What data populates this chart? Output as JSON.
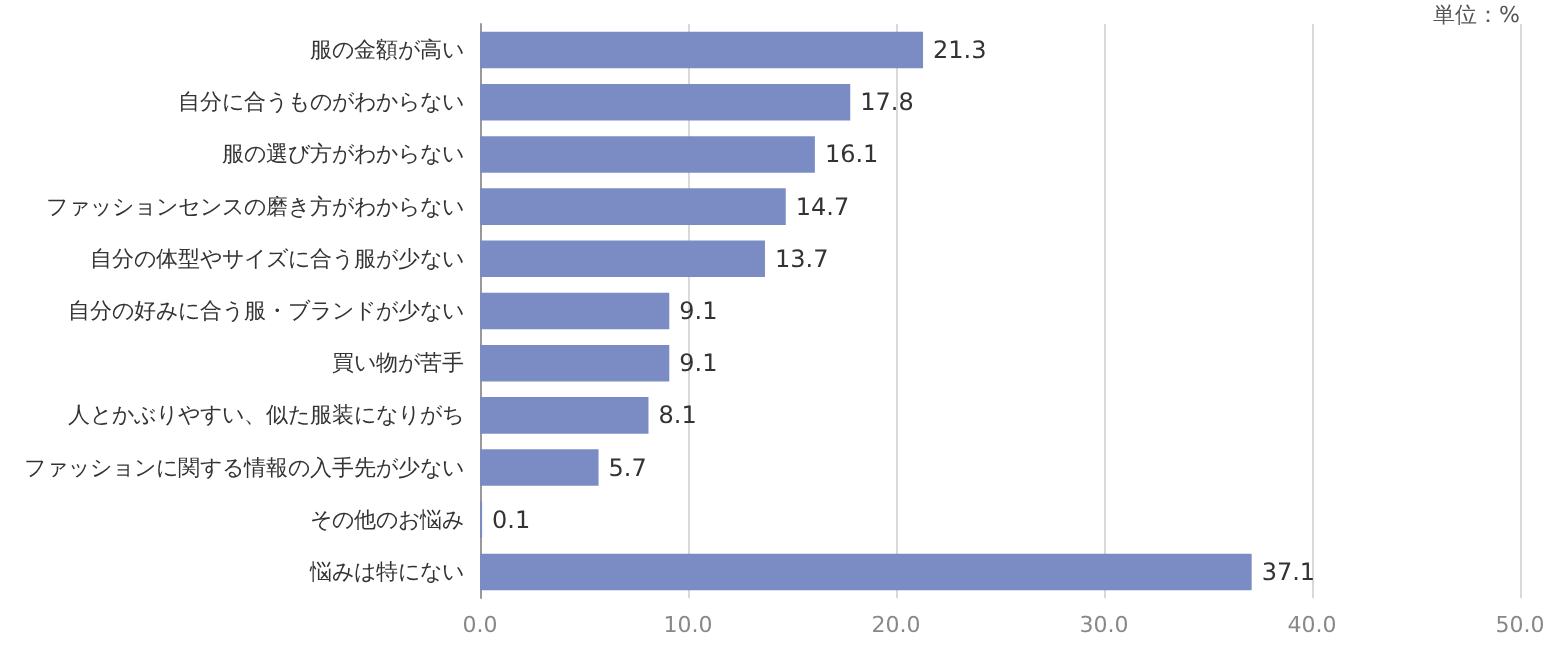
{
  "chart_data": {
    "type": "bar",
    "orientation": "horizontal",
    "categories": [
      "服の金額が高い",
      "自分に合うものがわからない",
      "服の選び方がわからない",
      "ファッションセンスの磨き方がわからない",
      "自分の体型やサイズに合う服が少ない",
      "自分の好みに合う服・ブランドが少ない",
      "買い物が苦手",
      "人とかぶりやすい、似た服装になりがち",
      "ファッションに関する情報の入手先が少ない",
      "その他のお悩み",
      "悩みは特にない"
    ],
    "values": [
      21.3,
      17.8,
      16.1,
      14.7,
      13.7,
      9.1,
      9.1,
      8.1,
      5.7,
      0.1,
      37.1
    ],
    "color": "#7b8cc4",
    "xlim": [
      0,
      50
    ],
    "xticks": [
      {
        "value": 0,
        "label": "0.0"
      },
      {
        "value": 10,
        "label": "10.0"
      },
      {
        "value": 20,
        "label": "20.0"
      },
      {
        "value": 30,
        "label": "30.0"
      },
      {
        "value": 40,
        "label": "40.0"
      },
      {
        "value": 50,
        "label": "50.0"
      }
    ],
    "grid": "x",
    "data_labels": true,
    "annotations": [
      "単位：%"
    ]
  }
}
